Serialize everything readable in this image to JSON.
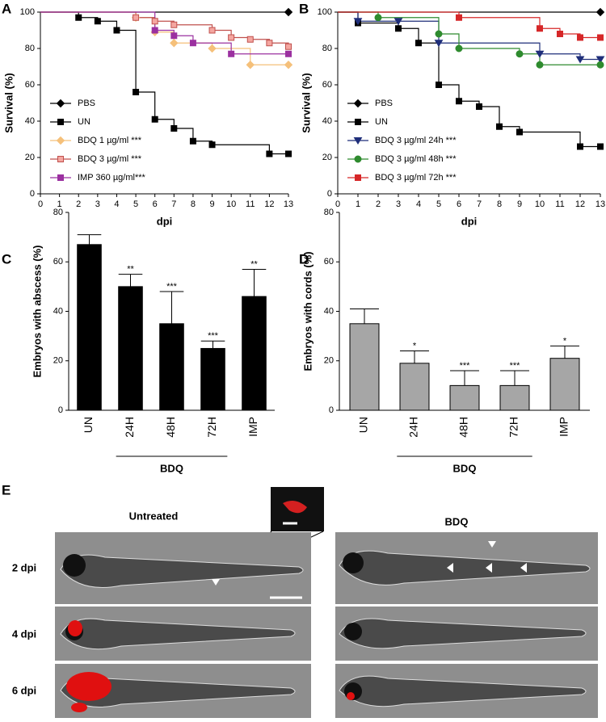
{
  "panels": [
    "A",
    "B",
    "C",
    "D",
    "E"
  ],
  "chart_data": [
    {
      "type": "line",
      "step": true,
      "xlabel": "dpi",
      "ylabel": "Survival (%)",
      "xlim": [
        0,
        13
      ],
      "xticks": [
        0,
        1,
        2,
        3,
        4,
        5,
        6,
        7,
        8,
        9,
        10,
        11,
        12,
        13
      ],
      "ylim": [
        0,
        100
      ],
      "yticks": [
        0,
        20,
        40,
        60,
        80,
        100
      ],
      "series": [
        {
          "name": "PBS",
          "color": "#000000",
          "marker": "diamond",
          "marker_fill": "#000000",
          "x": [
            0,
            13
          ],
          "values": [
            100,
            100
          ]
        },
        {
          "name": "UN",
          "color": "#000000",
          "marker": "square",
          "marker_fill": "#000000",
          "x": [
            0,
            2,
            3,
            4,
            5,
            6,
            7,
            8,
            9,
            12,
            13
          ],
          "values": [
            100,
            97,
            95,
            90,
            56,
            41,
            36,
            29,
            27,
            22,
            22
          ]
        },
        {
          "name": "BDQ 1 µg/ml ***",
          "color": "#f5c07a",
          "marker": "diamond",
          "marker_fill": "#f5c07a",
          "x": [
            0,
            5,
            6,
            7,
            9,
            11,
            13
          ],
          "values": [
            100,
            97,
            89,
            83,
            80,
            71,
            71
          ]
        },
        {
          "name": "BDQ 3 µg/ml ***",
          "color": "#c0504d",
          "marker": "square",
          "marker_fill": "#f4a6a0",
          "x": [
            0,
            5,
            6,
            7,
            9,
            10,
            11,
            12,
            13
          ],
          "values": [
            100,
            97,
            95,
            93,
            90,
            86,
            85,
            83,
            81
          ]
        },
        {
          "name": "IMP 360 µg/ml***",
          "color": "#9b30a0",
          "marker": "square",
          "marker_fill": "#9b30a0",
          "x": [
            0,
            6,
            7,
            8,
            10,
            13
          ],
          "values": [
            100,
            90,
            87,
            83,
            77,
            77
          ]
        }
      ]
    },
    {
      "type": "line",
      "step": true,
      "xlabel": "dpi",
      "ylabel": "Survival (%)",
      "xlim": [
        0,
        13
      ],
      "xticks": [
        0,
        1,
        2,
        3,
        4,
        5,
        6,
        7,
        8,
        9,
        10,
        11,
        12,
        13
      ],
      "ylim": [
        0,
        100
      ],
      "yticks": [
        0,
        20,
        40,
        60,
        80,
        100
      ],
      "series": [
        {
          "name": "PBS",
          "color": "#000000",
          "marker": "diamond",
          "marker_fill": "#000000",
          "x": [
            0,
            13
          ],
          "values": [
            100,
            100
          ]
        },
        {
          "name": "UN",
          "color": "#000000",
          "marker": "square",
          "marker_fill": "#000000",
          "x": [
            0,
            1,
            3,
            4,
            5,
            6,
            7,
            8,
            9,
            12,
            13
          ],
          "values": [
            100,
            94,
            91,
            83,
            60,
            51,
            48,
            37,
            34,
            26,
            26
          ]
        },
        {
          "name": "BDQ 3 µg/ml 24h ***",
          "color": "#1f2e7a",
          "marker": "triangle",
          "marker_fill": "#1f2e7a",
          "x": [
            0,
            1,
            3,
            5,
            10,
            12,
            13
          ],
          "values": [
            100,
            95,
            95,
            83,
            77,
            74,
            74
          ]
        },
        {
          "name": "BDQ 3 µg/ml 48h ***",
          "color": "#2e8b2e",
          "marker": "circle",
          "marker_fill": "#2e8b2e",
          "x": [
            0,
            2,
            5,
            6,
            9,
            10,
            13
          ],
          "values": [
            100,
            97,
            88,
            80,
            77,
            71,
            71
          ]
        },
        {
          "name": "BDQ 3 µg/ml 72h ***",
          "color": "#d62728",
          "marker": "square",
          "marker_fill": "#d62728",
          "x": [
            0,
            6,
            10,
            11,
            12,
            13
          ],
          "values": [
            100,
            97,
            91,
            88,
            86,
            86
          ]
        }
      ]
    },
    {
      "type": "bar",
      "ylabel": "Embryos with abscess (%)",
      "color": "#000000",
      "categories": [
        "UN",
        "24H",
        "48H",
        "72H",
        "IMP"
      ],
      "values": [
        67,
        50,
        35,
        25,
        46
      ],
      "errors": [
        4,
        5,
        13,
        3,
        11
      ],
      "significance": [
        null,
        "**",
        "***",
        "***",
        "**"
      ],
      "group_label": "BDQ",
      "ylim": [
        0,
        80
      ],
      "yticks": [
        0,
        20,
        40,
        60,
        80
      ]
    },
    {
      "type": "bar",
      "ylabel": "Embryos with cords (%)",
      "color": "#a6a6a6",
      "categories": [
        "UN",
        "24H",
        "48H",
        "72H",
        "IMP"
      ],
      "values": [
        35,
        19,
        10,
        10,
        21
      ],
      "errors": [
        6,
        5,
        6,
        6,
        5
      ],
      "significance": [
        null,
        "*",
        "***",
        "***",
        "*"
      ],
      "group_label": "BDQ",
      "ylim": [
        0,
        80
      ],
      "yticks": [
        0,
        20,
        40,
        60,
        80
      ]
    }
  ],
  "image_panel": {
    "columns": [
      "Untreated",
      "BDQ"
    ],
    "rows": [
      "2 dpi",
      "4 dpi",
      "6 dpi"
    ]
  }
}
